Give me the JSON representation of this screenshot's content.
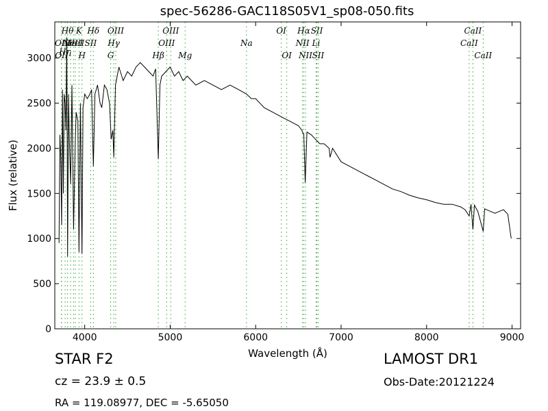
{
  "chart_data": {
    "type": "line",
    "title": "spec-56286-GAC118S05V1_sp08-050.fits",
    "xlabel": "Wavelength (Å)",
    "ylabel": "Flux (relative)",
    "xlim": [
      3650,
      9100
    ],
    "ylim": [
      0,
      3400
    ],
    "xticks": [
      4000,
      5000,
      6000,
      7000,
      8000,
      9000
    ],
    "yticks": [
      0,
      500,
      1000,
      1500,
      2000,
      2500,
      3000
    ],
    "xtick_labels": [
      "4000",
      "5000",
      "6000",
      "7000",
      "8000",
      "9000"
    ],
    "ytick_labels": [
      "0",
      "500",
      "1000",
      "1500",
      "2000",
      "2500",
      "3000"
    ],
    "grid": false,
    "line_color": "#000000",
    "marker_color": "#5cb85c",
    "series": [
      {
        "x": [
          3700,
          3710,
          3720,
          3730,
          3740,
          3750,
          3760,
          3770,
          3780,
          3790,
          3800,
          3810,
          3820,
          3835,
          3850,
          3870,
          3889,
          3900,
          3920,
          3933,
          3950,
          3968,
          3980,
          4000,
          4030,
          4060,
          4080,
          4101,
          4120,
          4150,
          4180,
          4200,
          4230,
          4260,
          4290,
          4310,
          4330,
          4340,
          4360,
          4380,
          4400,
          4450,
          4500,
          4550,
          4600,
          4650,
          4700,
          4750,
          4800,
          4830,
          4861,
          4880,
          4900,
          4950,
          5000,
          5050,
          5100,
          5150,
          5200,
          5300,
          5400,
          5500,
          5600,
          5700,
          5800,
          5893,
          5950,
          6000,
          6100,
          6200,
          6300,
          6400,
          6500,
          6540,
          6563,
          6580,
          6600,
          6650,
          6700,
          6750,
          6800,
          6860,
          6870,
          6900,
          7000,
          7100,
          7200,
          7300,
          7400,
          7500,
          7600,
          7700,
          7800,
          7900,
          8000,
          8100,
          8200,
          8300,
          8400,
          8450,
          8498,
          8520,
          8542,
          8560,
          8600,
          8662,
          8680,
          8700,
          8750,
          8800,
          8850,
          8900,
          8950,
          8990
        ],
        "y": [
          950,
          2150,
          1900,
          1150,
          2650,
          1500,
          2600,
          2500,
          2200,
          3230,
          800,
          2600,
          2100,
          1600,
          2700,
          1100,
          2050,
          2400,
          2300,
          850,
          2500,
          830,
          2450,
          2600,
          2550,
          2600,
          2650,
          1800,
          2600,
          2700,
          2500,
          2450,
          2700,
          2650,
          2500,
          2100,
          2200,
          1900,
          2700,
          2800,
          2900,
          2750,
          2850,
          2800,
          2900,
          2950,
          2900,
          2850,
          2800,
          2880,
          1880,
          2700,
          2800,
          2850,
          2900,
          2800,
          2850,
          2750,
          2800,
          2700,
          2750,
          2700,
          2650,
          2700,
          2650,
          2600,
          2550,
          2550,
          2450,
          2400,
          2350,
          2300,
          2250,
          2200,
          2150,
          1620,
          2180,
          2150,
          2100,
          2050,
          2050,
          2000,
          1900,
          2000,
          1850,
          1800,
          1750,
          1700,
          1650,
          1600,
          1550,
          1520,
          1480,
          1450,
          1430,
          1400,
          1380,
          1380,
          1350,
          1320,
          1250,
          1380,
          1100,
          1370,
          1300,
          1080,
          1330,
          1320,
          1300,
          1280,
          1300,
          1320,
          1270,
          1000
        ]
      }
    ],
    "lines": [
      {
        "x": 3727,
        "label": "OII",
        "tier": 1
      },
      {
        "x": 3729,
        "label": "OII",
        "tier": 2
      },
      {
        "x": 3771,
        "label": "Hη",
        "tier": 1.7
      },
      {
        "x": 3798,
        "label": "Hθ",
        "tier": 0
      },
      {
        "x": 3835,
        "label": "Hε",
        "tier": 1
      },
      {
        "x": 3869,
        "label": "NeIII",
        "tier": 1
      },
      {
        "x": 3889,
        "label": "HeI",
        "tier": 1
      },
      {
        "x": 3933,
        "label": "K",
        "tier": 0
      },
      {
        "x": 3968,
        "label": "H",
        "tier": 2
      },
      {
        "x": 4070,
        "label": "SII",
        "tier": 1
      },
      {
        "x": 4101,
        "label": "Hδ",
        "tier": 0
      },
      {
        "x": 4304,
        "label": "G",
        "tier": 2
      },
      {
        "x": 4340,
        "label": "Hγ",
        "tier": 1
      },
      {
        "x": 4363,
        "label": "OIII",
        "tier": 0
      },
      {
        "x": 4861,
        "label": "Hβ",
        "tier": 2
      },
      {
        "x": 4959,
        "label": "OIII",
        "tier": 1
      },
      {
        "x": 5007,
        "label": "OIII",
        "tier": 0
      },
      {
        "x": 5175,
        "label": "Mg",
        "tier": 2
      },
      {
        "x": 5893,
        "label": "Na",
        "tier": 1
      },
      {
        "x": 6300,
        "label": "OI",
        "tier": 0
      },
      {
        "x": 6364,
        "label": "OI",
        "tier": 2
      },
      {
        "x": 6548,
        "label": "NII",
        "tier": 1
      },
      {
        "x": 6563,
        "label": "Hα",
        "tier": 0
      },
      {
        "x": 6583,
        "label": "NII",
        "tier": 2
      },
      {
        "x": 6707,
        "label": "Li",
        "tier": 1
      },
      {
        "x": 6716,
        "label": "SII",
        "tier": 0
      },
      {
        "x": 6731,
        "label": "SII",
        "tier": 2
      },
      {
        "x": 8498,
        "label": "CaII",
        "tier": 1
      },
      {
        "x": 8542,
        "label": "CaII",
        "tier": 0
      },
      {
        "x": 8662,
        "label": "CaII",
        "tier": 2
      }
    ]
  },
  "footer": {
    "object_class": "STAR   F2",
    "cz": "cz = 23.9 ± 0.5",
    "radec": "RA = 119.08977, DEC = -5.65050",
    "survey": "LAMOST DR1",
    "obs_date": "Obs-Date:20121224"
  }
}
